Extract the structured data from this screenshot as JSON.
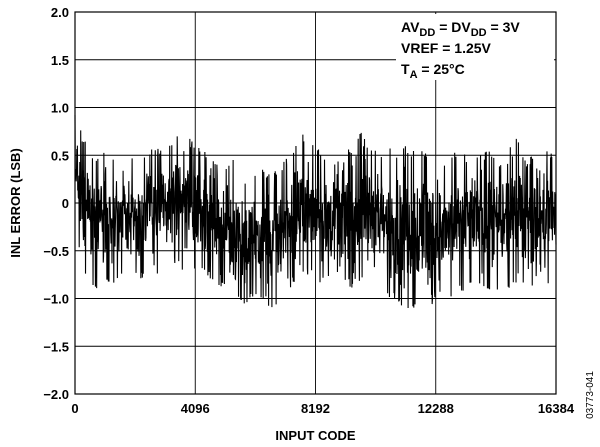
{
  "chart_data": {
    "type": "line",
    "title": "",
    "xlabel": "INPUT CODE",
    "ylabel": "INL ERROR (LSB)",
    "xlim": [
      0,
      16384
    ],
    "ylim": [
      -2.0,
      2.0
    ],
    "x_ticks": [
      0,
      4096,
      8192,
      12288,
      16384
    ],
    "x_tick_labels": [
      "0",
      "4096",
      "8192",
      "12288",
      "16384"
    ],
    "y_ticks": [
      2.0,
      1.5,
      1.0,
      0.5,
      0,
      -0.5,
      -1.0,
      -1.5,
      -2.0
    ],
    "y_tick_labels": [
      "2.0",
      "1.5",
      "1.0",
      "0.5",
      "0",
      "−0.5",
      "−1.0",
      "−1.5",
      "−2.0"
    ],
    "grid": true,
    "annotations": [
      {
        "id": "supply",
        "parts": [
          [
            "AV",
            ""
          ],
          [
            "DD",
            "sub"
          ],
          [
            " = DV",
            ""
          ],
          [
            "DD",
            "sub"
          ],
          [
            " = 3V",
            ""
          ]
        ]
      },
      {
        "id": "vref",
        "parts": [
          [
            "VREF = 1.25V",
            ""
          ]
        ]
      },
      {
        "id": "temp",
        "parts": [
          [
            "T",
            ""
          ],
          [
            "A",
            "sub"
          ],
          [
            " = 25°C",
            ""
          ]
        ]
      }
    ],
    "series": [
      {
        "color": "#000000",
        "x": [
          0,
          256,
          512,
          768,
          1024,
          1280,
          1536,
          1792,
          2048,
          2304,
          2560,
          2816,
          3072,
          3328,
          3584,
          3840,
          4096,
          4352,
          4608,
          4864,
          5120,
          5376,
          5632,
          5888,
          6144,
          6400,
          6656,
          6912,
          7168,
          7424,
          7680,
          7936,
          8192,
          8448,
          8704,
          8960,
          9216,
          9472,
          9728,
          9984,
          10240,
          10496,
          10752,
          11008,
          11264,
          11520,
          11776,
          12032,
          12288,
          12544,
          12800,
          13056,
          13312,
          13568,
          13824,
          14080,
          14336,
          14592,
          14848,
          15104,
          15360,
          15616,
          15872,
          16128,
          16384
        ],
        "upper": [
          0.95,
          0.7,
          0.55,
          0.5,
          0.6,
          0.45,
          0.5,
          0.55,
          0.45,
          0.5,
          0.55,
          0.6,
          0.55,
          0.65,
          0.8,
          0.7,
          0.6,
          0.55,
          0.5,
          0.45,
          0.4,
          0.45,
          0.45,
          0.35,
          0.3,
          0.35,
          0.3,
          0.35,
          0.45,
          0.55,
          0.7,
          0.75,
          0.6,
          0.5,
          0.45,
          0.55,
          0.6,
          0.5,
          0.8,
          0.55,
          0.6,
          0.45,
          0.6,
          0.5,
          0.6,
          0.55,
          0.55,
          0.5,
          0.45,
          0.4,
          0.5,
          0.55,
          0.5,
          0.45,
          0.5,
          0.55,
          0.45,
          0.4,
          0.6,
          0.7,
          0.45,
          0.5,
          0.6,
          0.55,
          0.5
        ],
        "lower": [
          -0.3,
          -0.7,
          -0.8,
          -0.95,
          -0.8,
          -0.85,
          -0.75,
          -0.7,
          -0.75,
          -0.8,
          -0.7,
          -0.75,
          -0.7,
          -0.6,
          -0.7,
          -0.75,
          -0.7,
          -0.75,
          -0.8,
          -0.85,
          -0.9,
          -1.0,
          -1.1,
          -1.05,
          -0.95,
          -1.0,
          -1.1,
          -1.05,
          -0.95,
          -0.85,
          -0.7,
          -0.75,
          -0.8,
          -0.85,
          -0.8,
          -0.9,
          -0.85,
          -0.9,
          -0.8,
          -0.85,
          -0.85,
          -0.9,
          -1.0,
          -1.05,
          -1.1,
          -1.1,
          -1.05,
          -1.25,
          -0.95,
          -1.05,
          -1.0,
          -0.95,
          -0.9,
          -0.8,
          -0.85,
          -0.9,
          -0.95,
          -0.85,
          -0.9,
          -0.8,
          -0.85,
          -0.9,
          -0.95,
          -0.85,
          -0.8
        ]
      }
    ]
  },
  "figure_id": "03773-041"
}
